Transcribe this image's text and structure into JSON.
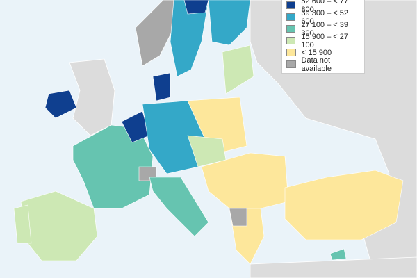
{
  "legend": {
    "items": [
      {
        "label": "52 600 – < 77 800",
        "color": "#0f3f8f"
      },
      {
        "label": "39 300 – < 52 600",
        "color": "#34a8c8"
      },
      {
        "label": "27 100 – < 39 300",
        "color": "#66c4b0"
      },
      {
        "label": "15 900 – < 27 100",
        "color": "#cde8b4"
      },
      {
        "label": "< 15 900",
        "color": "#fde79b"
      },
      {
        "label": "Data not available",
        "color": "#a8a8a8"
      }
    ]
  }
}
